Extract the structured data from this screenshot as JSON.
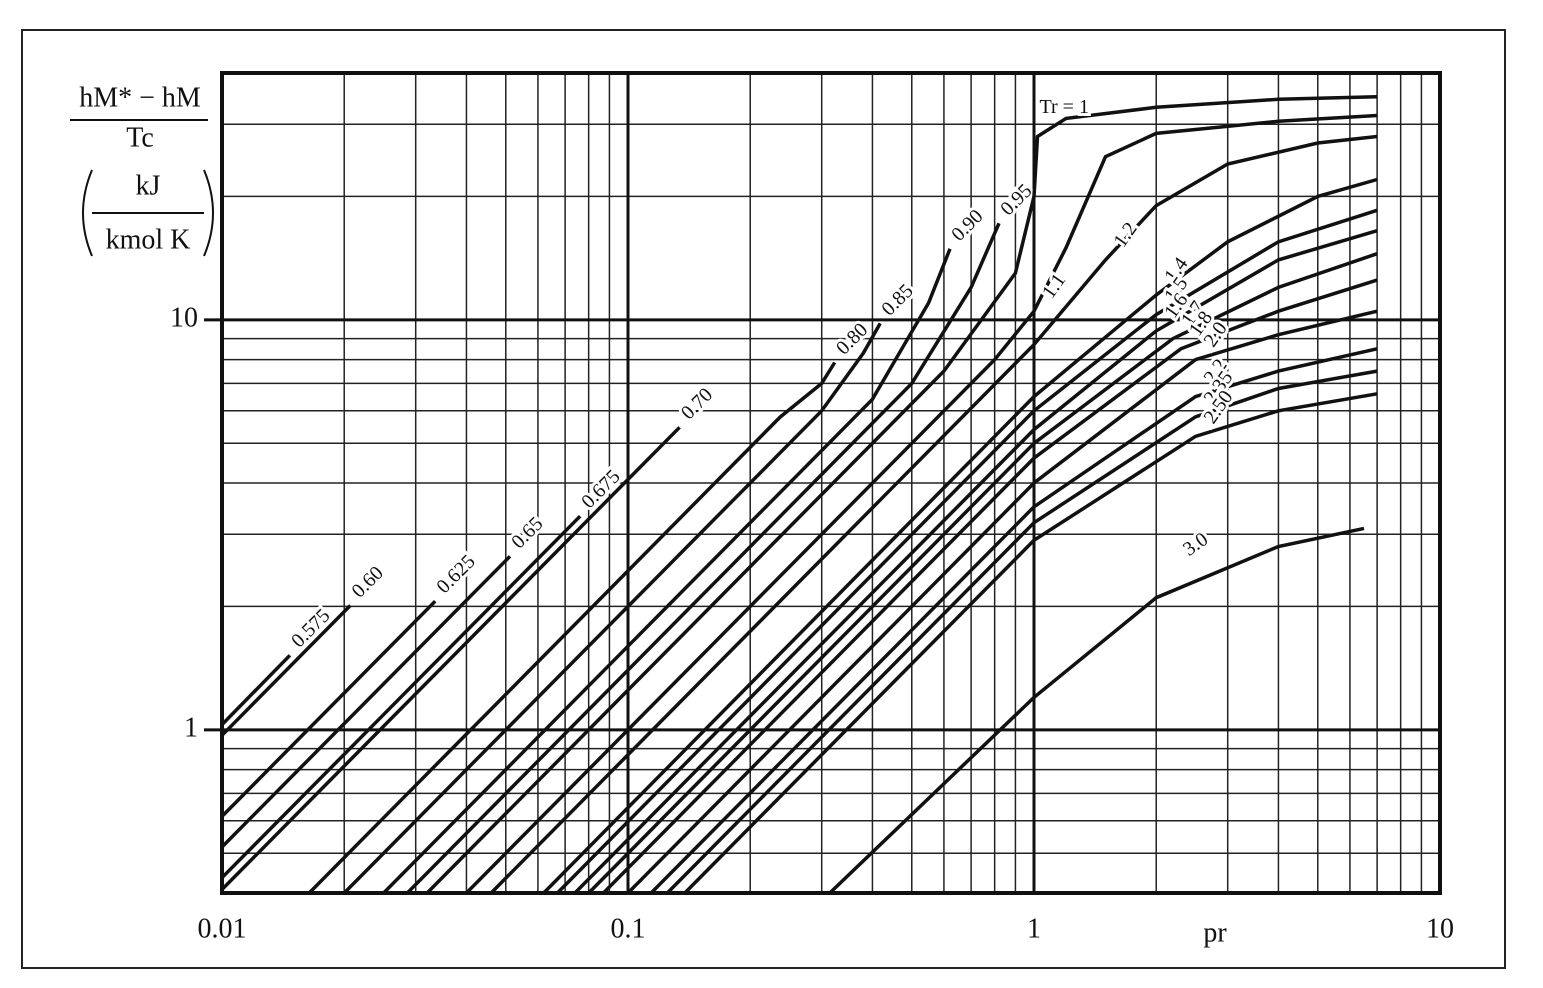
{
  "chart_data": {
    "type": "line",
    "y_label_numerator": "hM* − hM",
    "y_label_denominator": "Tc",
    "y_unit_numerator": "kJ",
    "y_unit_denominator": "kmol K",
    "x_label": "pr",
    "log_x": true,
    "log_y": true,
    "grid": true,
    "minor_grid": true,
    "color": "#111",
    "xlim": [
      0.01,
      10
    ],
    "ylim": [
      0.4,
      40
    ],
    "xticks": [
      0.01,
      0.1,
      1,
      10
    ],
    "yticks": [
      1,
      10
    ],
    "series": [
      {
        "name": "0.575",
        "x": [
          0.01,
          0.0147
        ],
        "values": [
          1.03,
          1.52
        ]
      },
      {
        "name": "0.60",
        "x": [
          0.01,
          0.0207
        ],
        "values": [
          0.97,
          2.01
        ]
      },
      {
        "name": "0.625",
        "x": [
          0.01,
          0.0335
        ],
        "values": [
          0.615,
          2.06
        ]
      },
      {
        "name": "0.65",
        "x": [
          0.01,
          0.0512
        ],
        "values": [
          0.518,
          2.65
        ]
      },
      {
        "name": "0.675",
        "x": [
          0.01,
          0.0762
        ],
        "values": [
          0.436,
          3.32
        ]
      },
      {
        "name": "0.70",
        "x": [
          0.01,
          0.134
        ],
        "values": [
          0.408,
          5.47
        ]
      },
      {
        "name": "0.80",
        "x": [
          0.0164,
          0.237,
          0.3,
          0.323
        ],
        "values": [
          0.4,
          5.79,
          7.0,
          7.87
        ]
      },
      {
        "name": "0.85",
        "x": [
          0.02,
          0.3,
          0.38,
          0.418
        ],
        "values": [
          0.4,
          6.0,
          8.3,
          9.8
        ]
      },
      {
        "name": "0.90",
        "x": [
          0.025,
          0.4,
          0.55,
          0.621
        ],
        "values": [
          0.4,
          6.4,
          11,
          14.9
        ]
      },
      {
        "name": "0.95",
        "x": [
          0.0286,
          0.5,
          0.7,
          0.82
        ],
        "values": [
          0.4,
          7.0,
          12,
          17.2
        ]
      },
      {
        "name": "Tr = 1",
        "x": [
          0.032,
          0.6,
          0.9,
          1.0,
          1.02,
          1.2,
          2,
          4,
          7
        ],
        "values": [
          0.4,
          7.5,
          13,
          20,
          28,
          31,
          33,
          34.5,
          35
        ]
      },
      {
        "name": "1.1",
        "x": [
          0.04,
          0.8,
          1.0,
          1.2,
          1.5,
          2,
          4,
          7
        ],
        "values": [
          0.4,
          8,
          10.5,
          15,
          25,
          28.5,
          30.5,
          31.5
        ]
      },
      {
        "name": "1.2",
        "x": [
          0.046,
          1,
          1.5,
          2,
          3,
          5,
          7
        ],
        "values": [
          0.4,
          8.7,
          14,
          19,
          24,
          27,
          28
        ]
      },
      {
        "name": "1.4",
        "x": [
          0.062,
          1,
          2,
          3,
          5,
          7
        ],
        "values": [
          0.4,
          6.5,
          11.5,
          15.5,
          20,
          22
        ]
      },
      {
        "name": "1.5",
        "x": [
          0.067,
          1,
          2,
          4,
          7
        ],
        "values": [
          0.4,
          6,
          10.3,
          15.5,
          18.5
        ]
      },
      {
        "name": "1.6",
        "x": [
          0.074,
          1,
          2,
          4,
          7
        ],
        "values": [
          0.4,
          5.4,
          9.4,
          14,
          16.5
        ]
      },
      {
        "name": "1.7",
        "x": [
          0.08,
          1,
          2.2,
          4,
          7
        ],
        "values": [
          0.4,
          5,
          9,
          12,
          14.5
        ]
      },
      {
        "name": "1.8",
        "x": [
          0.087,
          1,
          2.3,
          4,
          7
        ],
        "values": [
          0.4,
          4.6,
          8.5,
          10.5,
          12.5
        ]
      },
      {
        "name": "2.0",
        "x": [
          0.1,
          1,
          2.5,
          4,
          7
        ],
        "values": [
          0.4,
          4,
          8,
          9.2,
          10.5
        ]
      },
      {
        "name": "2.2",
        "x": [
          0.114,
          1,
          2.5,
          4,
          7
        ],
        "values": [
          0.4,
          3.5,
          6.5,
          7.5,
          8.5
        ]
      },
      {
        "name": "2.35",
        "x": [
          0.125,
          1,
          2.5,
          4,
          7
        ],
        "values": [
          0.4,
          3.2,
          5.8,
          6.8,
          7.5
        ]
      },
      {
        "name": "2.50",
        "x": [
          0.138,
          1,
          2.5,
          4,
          7
        ],
        "values": [
          0.4,
          2.9,
          5.2,
          6,
          6.6
        ]
      },
      {
        "name": "3.0",
        "x": [
          0.314,
          1,
          2,
          4,
          6.5
        ],
        "values": [
          0.4,
          1.2,
          2.1,
          2.8,
          3.1
        ]
      }
    ]
  }
}
